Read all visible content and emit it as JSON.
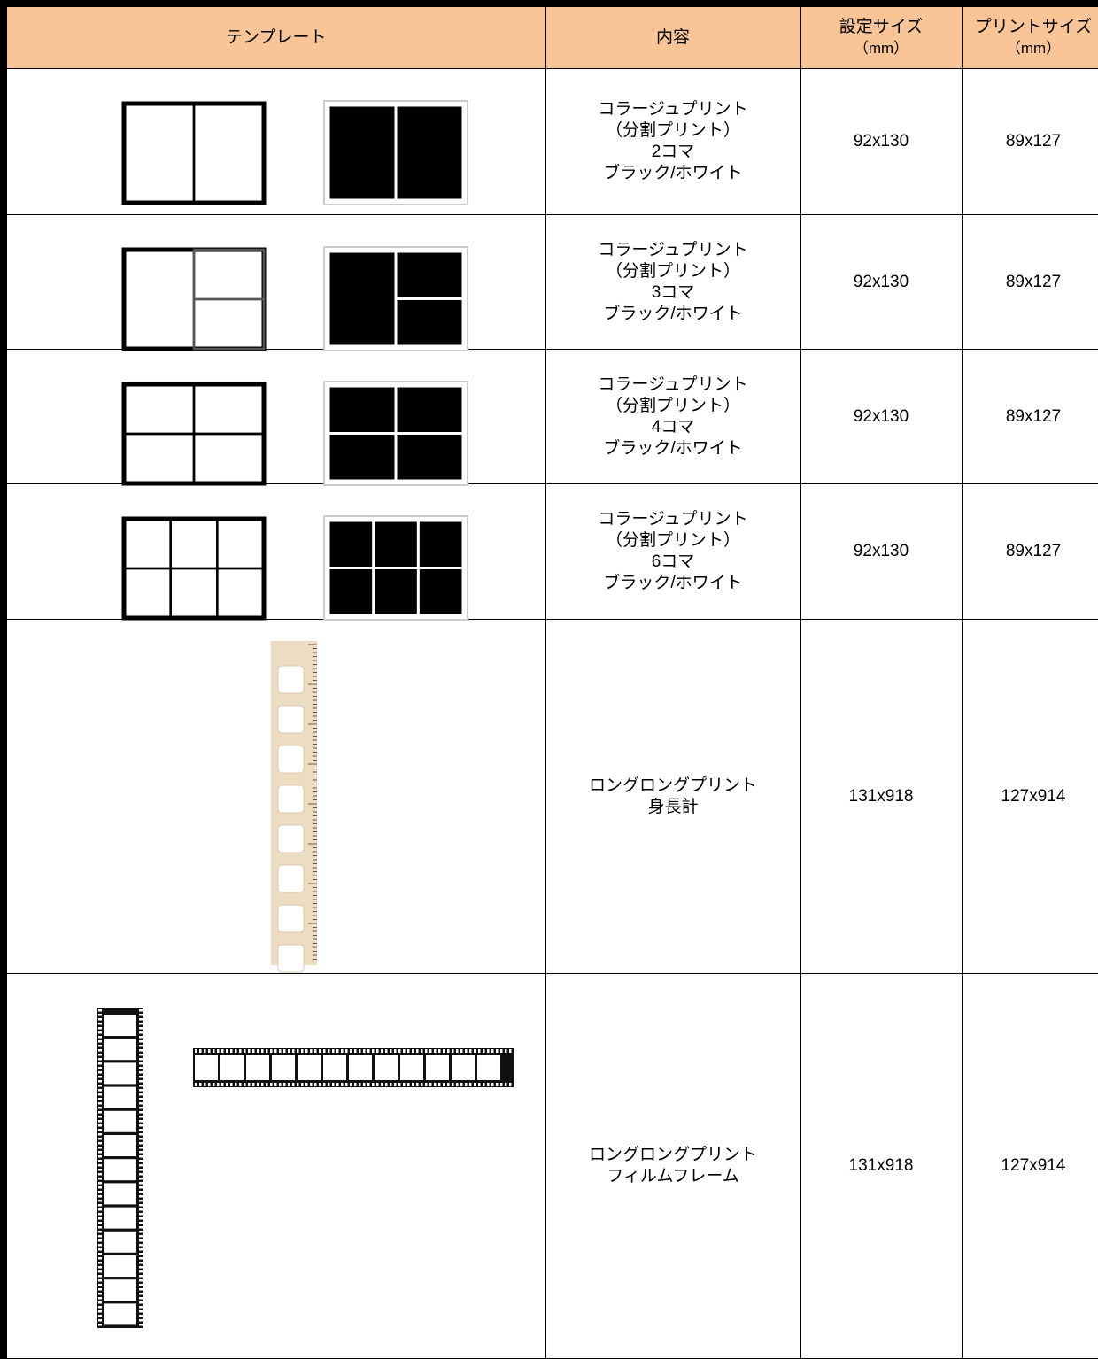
{
  "table": {
    "header": [
      [
        "テンプレート"
      ],
      [
        "内容"
      ],
      [
        "設定サイズ",
        "（mm）"
      ],
      [
        "プリントサイズ",
        "（mm）"
      ]
    ],
    "rows": [
      {
        "content": [
          "コラージュプリント",
          "（分割プリント）",
          "2コマ",
          "ブラック/ホワイト"
        ],
        "set_size": "92x130",
        "print_size": "89x127"
      },
      {
        "content": [
          "コラージュプリント",
          "（分割プリント）",
          "3コマ",
          "ブラック/ホワイト"
        ],
        "set_size": "92x130",
        "print_size": "89x127"
      },
      {
        "content": [
          "コラージュプリント",
          "（分割プリント）",
          "4コマ",
          "ブラック/ホワイト"
        ],
        "set_size": "92x130",
        "print_size": "89x127"
      },
      {
        "content": [
          "コラージュプリント",
          "（分割プリント）",
          "6コマ",
          "ブラック/ホワイト"
        ],
        "set_size": "92x130",
        "print_size": "89x127"
      },
      {
        "content": [
          "ロングロングプリント",
          "身長計"
        ],
        "set_size": "131x918",
        "print_size": "127x914"
      },
      {
        "content": [
          "ロングロングプリント",
          "フィルムフレーム"
        ],
        "set_size": "131x918",
        "print_size": "127x914"
      }
    ]
  }
}
